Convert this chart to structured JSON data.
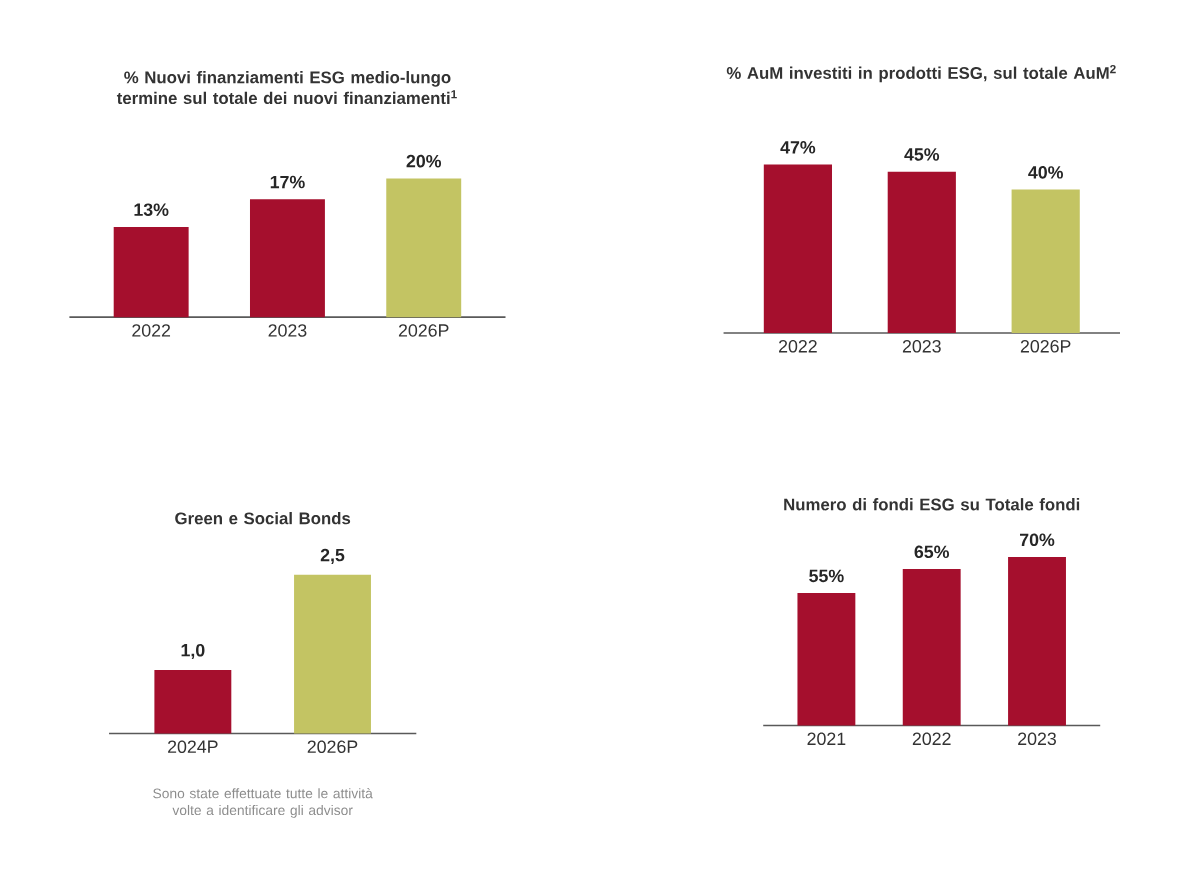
{
  "chart_data": [
    {
      "type": "bar",
      "title": "% Nuovi finanziamenti ESG medio-lungo termine sul totale dei nuovi finanziamenti$^{1}$",
      "categories": [
        "2022",
        "2023",
        "2026P"
      ],
      "values": [
        13,
        17,
        20
      ],
      "colors": [
        "#a50f2d",
        "#a50f2d",
        "#c3c463"
      ],
      "value_labels": [
        "13%",
        "17%",
        "20%"
      ],
      "tick_labels": "x"
    },
    {
      "type": "bar",
      "title": "% AuM investiti in prodotti ESG, sul totale AuM$^{2}$",
      "categories": [
        "2022",
        "2023",
        "2026P"
      ],
      "values": [
        47,
        45,
        40
      ],
      "colors": [
        "#a50f2d",
        "#a50f2d",
        "#c3c463"
      ],
      "value_labels": [
        "47%",
        "45%",
        "40%"
      ],
      "tick_labels": "x"
    },
    {
      "type": "bar",
      "title": "Green e Social Bonds",
      "categories": [
        "2024P",
        "2026P"
      ],
      "values": [
        1.0,
        2.5
      ],
      "colors": [
        "#a50f2d",
        "#c3c463"
      ],
      "value_labels": [
        "1,0",
        "2,5"
      ],
      "tick_labels": "x",
      "annotations": [
        "Sono state effettuate tutte le attività volte a identificare gli advisor"
      ]
    },
    {
      "type": "bar",
      "title": "Numero di fondi ESG su Totale fondi",
      "categories": [
        "2021",
        "2022",
        "2023"
      ],
      "values": [
        55,
        65,
        70
      ],
      "colors": [
        "#a50f2d",
        "#a50f2d",
        "#a50f2d"
      ],
      "value_labels": [
        "55%",
        "65%",
        "70%"
      ],
      "tick_labels": "x"
    }
  ]
}
